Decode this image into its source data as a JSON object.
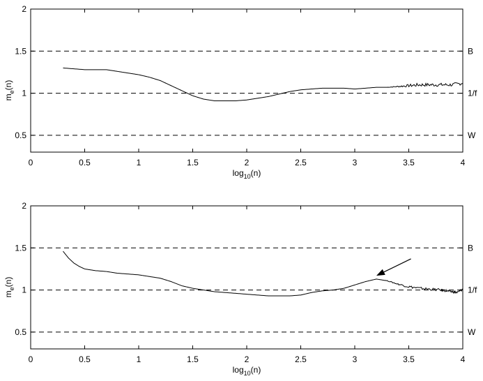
{
  "chart_data": [
    {
      "type": "line",
      "xlabel": {
        "base": "log",
        "sub": "10",
        "tail": "(n)"
      },
      "ylabel": {
        "base": "m",
        "sub": "e",
        "tail": "(n)"
      },
      "xlim": [
        0,
        4
      ],
      "ylim": [
        0.3,
        2
      ],
      "xticks": [
        "0",
        "0.5",
        "1",
        "1.5",
        "2",
        "2.5",
        "3",
        "3.5",
        "4"
      ],
      "yticks": [
        "0.5",
        "1",
        "1.5",
        "2"
      ],
      "reference_lines": [
        {
          "y": 1.5,
          "label": "B"
        },
        {
          "y": 1.0,
          "label": "1/f"
        },
        {
          "y": 0.5,
          "label": "W"
        }
      ],
      "grid": false,
      "series": [
        {
          "points": [
            [
              0.3,
              1.3
            ],
            [
              0.4,
              1.29
            ],
            [
              0.5,
              1.28
            ],
            [
              0.6,
              1.28
            ],
            [
              0.7,
              1.28
            ],
            [
              0.8,
              1.26
            ],
            [
              0.9,
              1.24
            ],
            [
              1.0,
              1.22
            ],
            [
              1.1,
              1.19
            ],
            [
              1.2,
              1.15
            ],
            [
              1.3,
              1.09
            ],
            [
              1.4,
              1.03
            ],
            [
              1.5,
              0.97
            ],
            [
              1.6,
              0.93
            ],
            [
              1.7,
              0.91
            ],
            [
              1.8,
              0.91
            ],
            [
              1.9,
              0.91
            ],
            [
              2.0,
              0.92
            ],
            [
              2.1,
              0.94
            ],
            [
              2.2,
              0.96
            ],
            [
              2.3,
              0.99
            ],
            [
              2.4,
              1.02
            ],
            [
              2.5,
              1.04
            ],
            [
              2.6,
              1.05
            ],
            [
              2.7,
              1.06
            ],
            [
              2.8,
              1.06
            ],
            [
              2.9,
              1.06
            ],
            [
              3.0,
              1.05
            ],
            [
              3.1,
              1.06
            ],
            [
              3.2,
              1.07
            ],
            [
              3.3,
              1.07
            ],
            [
              3.4,
              1.08
            ],
            [
              3.5,
              1.09
            ],
            [
              3.6,
              1.1
            ],
            [
              3.7,
              1.1
            ],
            [
              3.8,
              1.1
            ],
            [
              3.9,
              1.1
            ],
            [
              4.0,
              1.12
            ]
          ],
          "noise_from_x": 3.3,
          "noise_amplitude": 0.02
        }
      ]
    },
    {
      "type": "line",
      "xlabel": {
        "base": "log",
        "sub": "10",
        "tail": "(n)"
      },
      "ylabel": {
        "base": "m",
        "sub": "e",
        "tail": "(n)"
      },
      "xlim": [
        0,
        4
      ],
      "ylim": [
        0.3,
        2
      ],
      "xticks": [
        "0",
        "0.5",
        "1",
        "1.5",
        "2",
        "2.5",
        "3",
        "3.5",
        "4"
      ],
      "yticks": [
        "0.5",
        "1",
        "1.5",
        "2"
      ],
      "reference_lines": [
        {
          "y": 1.5,
          "label": "B"
        },
        {
          "y": 1.0,
          "label": "1/f"
        },
        {
          "y": 0.5,
          "label": "W"
        }
      ],
      "grid": false,
      "series": [
        {
          "points": [
            [
              0.3,
              1.46
            ],
            [
              0.35,
              1.38
            ],
            [
              0.4,
              1.32
            ],
            [
              0.45,
              1.28
            ],
            [
              0.5,
              1.25
            ],
            [
              0.6,
              1.23
            ],
            [
              0.7,
              1.22
            ],
            [
              0.8,
              1.2
            ],
            [
              0.9,
              1.19
            ],
            [
              1.0,
              1.18
            ],
            [
              1.1,
              1.16
            ],
            [
              1.2,
              1.14
            ],
            [
              1.3,
              1.1
            ],
            [
              1.4,
              1.05
            ],
            [
              1.5,
              1.02
            ],
            [
              1.6,
              1.0
            ],
            [
              1.7,
              0.98
            ],
            [
              1.8,
              0.97
            ],
            [
              1.9,
              0.96
            ],
            [
              2.0,
              0.95
            ],
            [
              2.1,
              0.94
            ],
            [
              2.2,
              0.93
            ],
            [
              2.3,
              0.93
            ],
            [
              2.4,
              0.93
            ],
            [
              2.5,
              0.94
            ],
            [
              2.6,
              0.97
            ],
            [
              2.7,
              0.99
            ],
            [
              2.8,
              1.0
            ],
            [
              2.9,
              1.02
            ],
            [
              3.0,
              1.06
            ],
            [
              3.1,
              1.1
            ],
            [
              3.2,
              1.13
            ],
            [
              3.3,
              1.11
            ],
            [
              3.4,
              1.07
            ],
            [
              3.5,
              1.04
            ],
            [
              3.6,
              1.02
            ],
            [
              3.7,
              1.01
            ],
            [
              3.8,
              1.0
            ],
            [
              3.85,
              0.99
            ],
            [
              3.9,
              0.98
            ],
            [
              3.95,
              0.97
            ],
            [
              4.0,
              1.01
            ]
          ],
          "noise_from_x": 3.25,
          "noise_amplitude": 0.015
        }
      ],
      "arrow": {
        "from": [
          3.52,
          1.37
        ],
        "to": [
          3.2,
          1.17
        ]
      }
    }
  ]
}
